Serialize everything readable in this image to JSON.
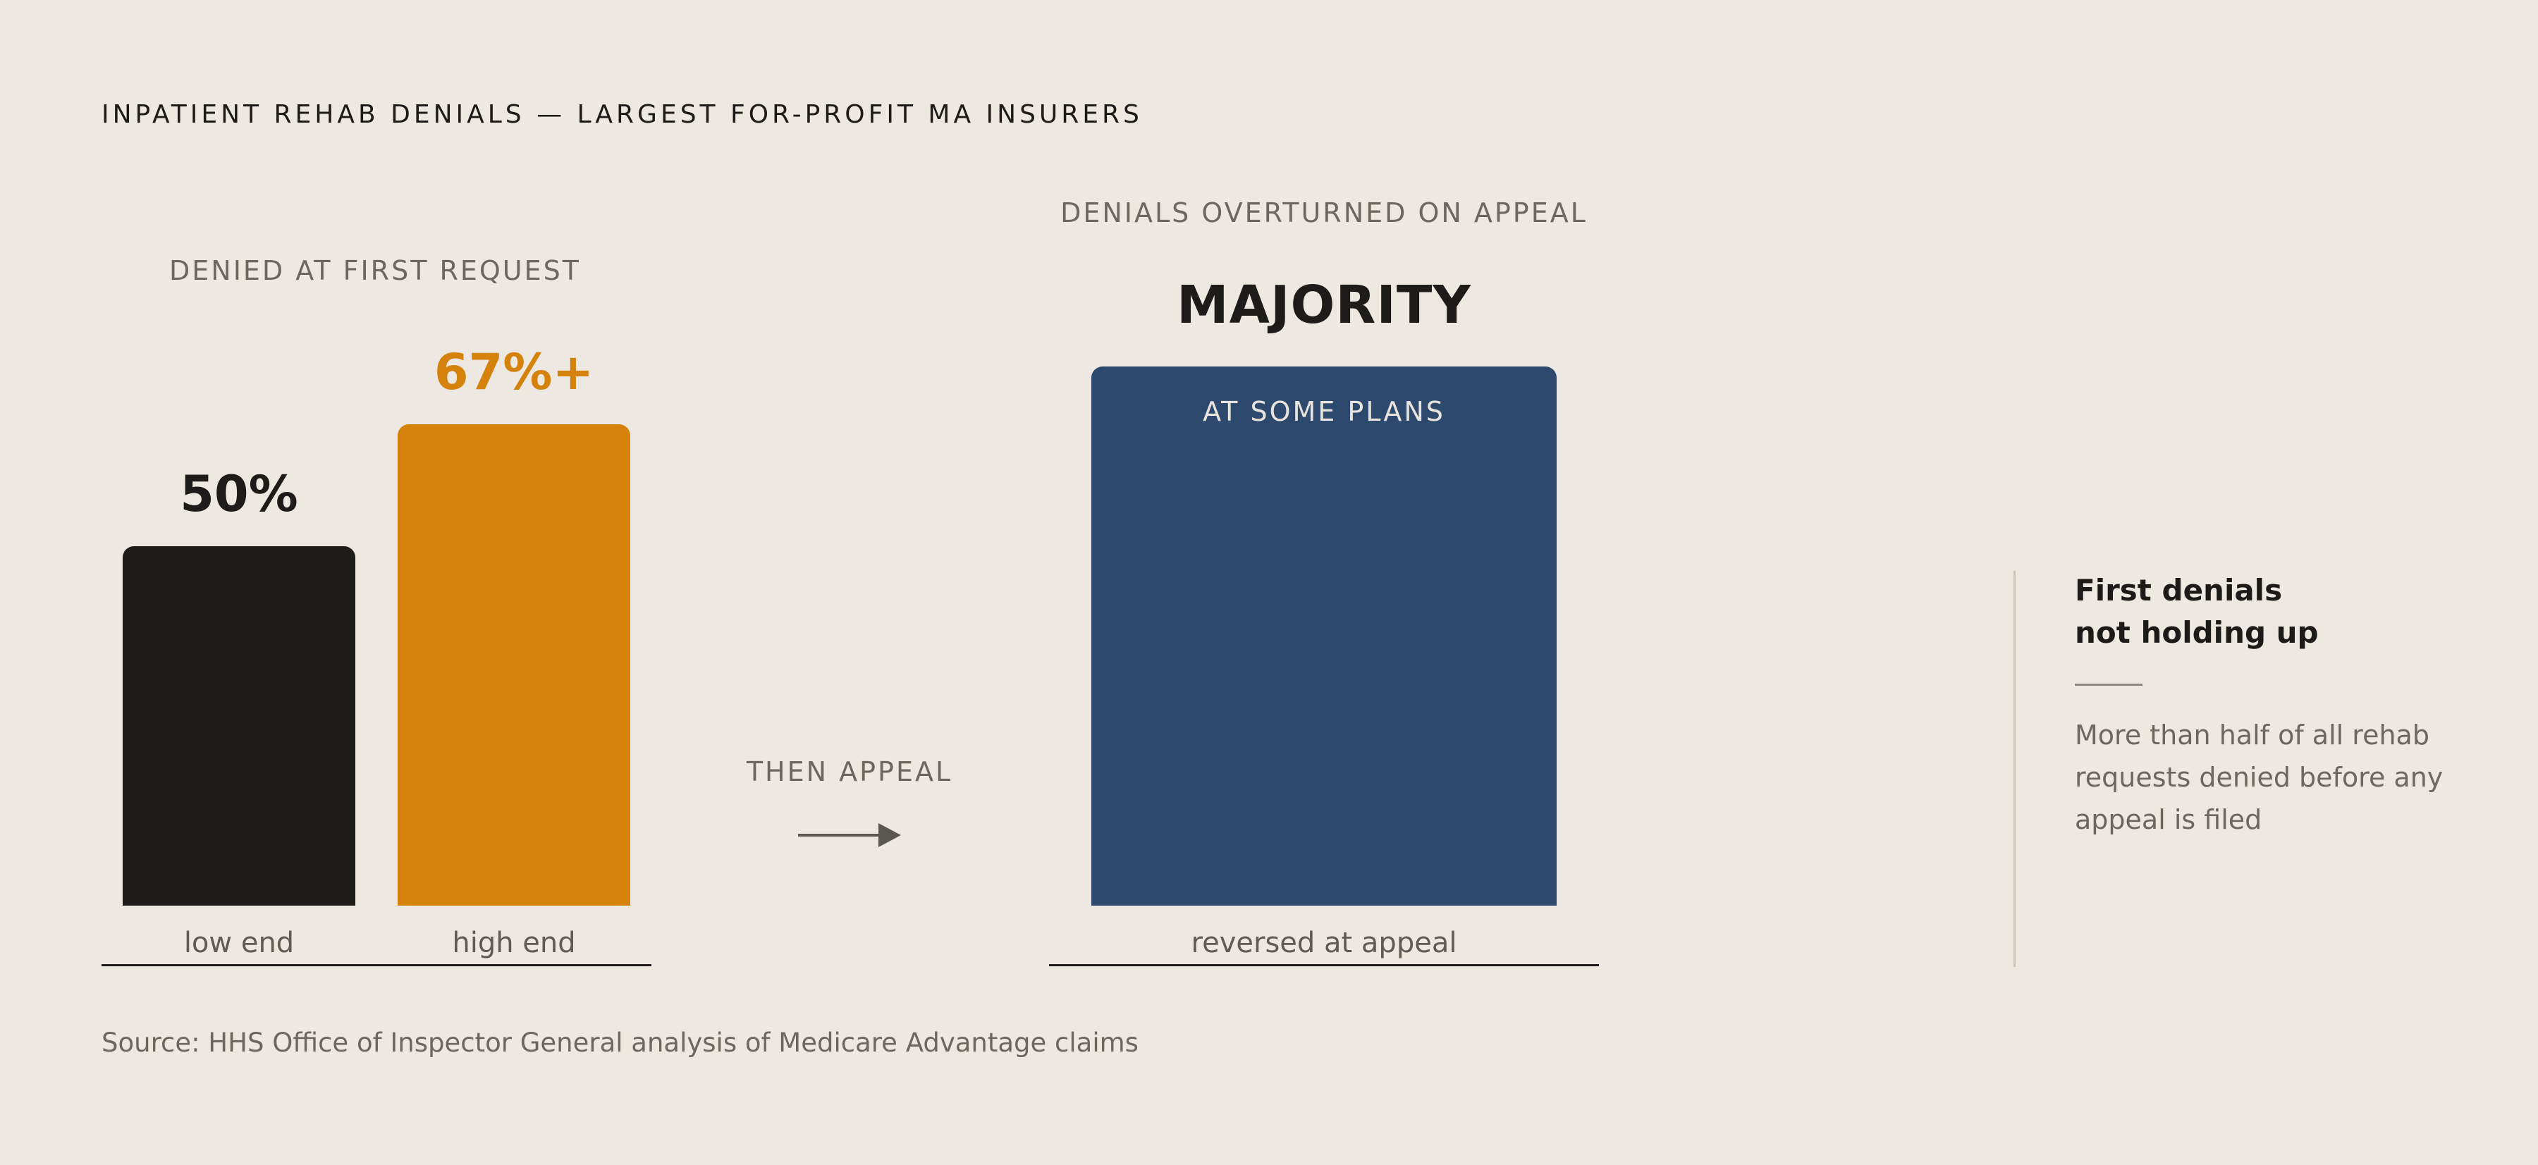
{
  "title": "INPATIENT REHAB DENIALS — LARGEST FOR-PROFIT MA INSURERS",
  "chart_data": [
    {
      "type": "bar",
      "title": "DENIED AT FIRST REQUEST",
      "categories": [
        "low end",
        "high end"
      ],
      "values": [
        50,
        67
      ],
      "value_labels": [
        "50%",
        "67%+"
      ],
      "ylim": [
        0,
        100
      ],
      "colors": [
        "#1d1c1a",
        "#d4820b"
      ],
      "grid": false
    },
    {
      "type": "bar",
      "title": "DENIALS OVERTURNED ON APPEAL",
      "categories": [
        "reversed at appeal"
      ],
      "values": [
        75
      ],
      "value_labels": [
        "MAJORITY"
      ],
      "bar_annotation": "AT SOME PLANS",
      "ylim": [
        0,
        100
      ],
      "colors": [
        "#2d4a6e"
      ],
      "grid": false
    }
  ],
  "connector": {
    "label": "THEN APPEAL",
    "icon": "arrow-right-icon"
  },
  "aside": {
    "title_line1": "First denials",
    "title_line2": "not holding up",
    "body": "More than half of all rehab requests denied before any appeal is filed"
  },
  "source": "Source: HHS Office of Inspector General analysis of Medicare Advantage claims"
}
